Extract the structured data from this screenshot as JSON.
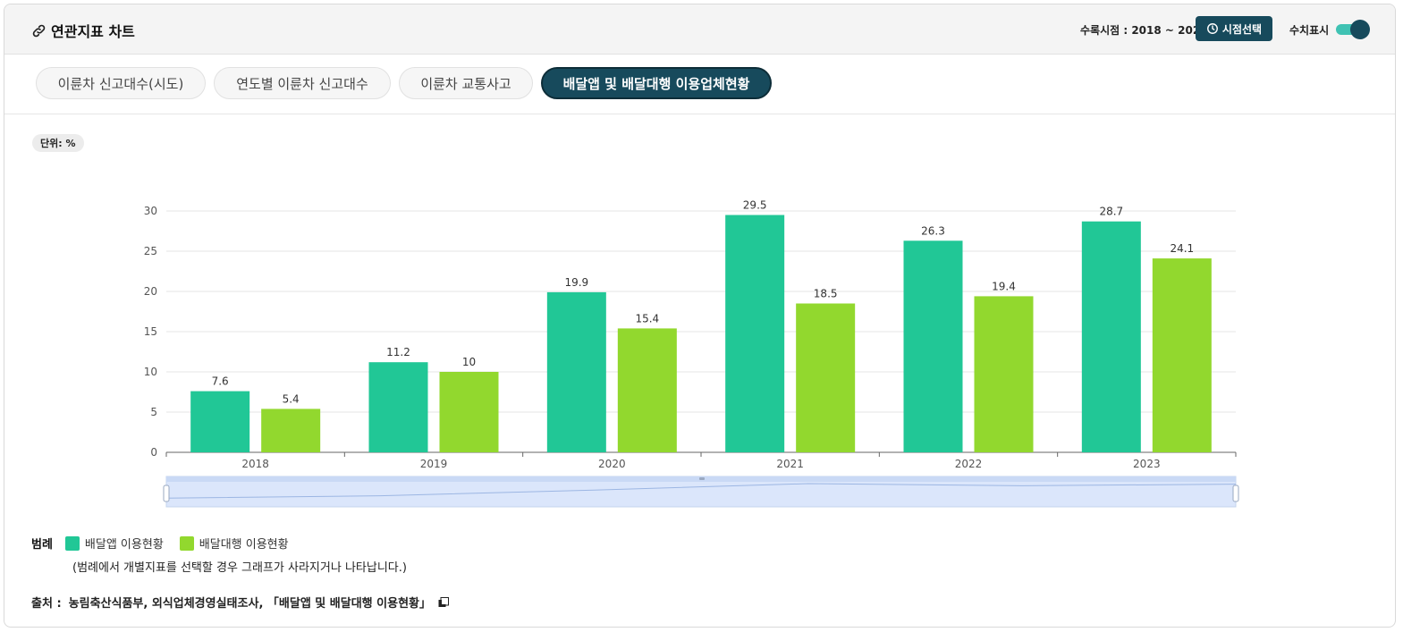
{
  "header": {
    "title": "연관지표 차트",
    "period_label": "수록시점 : 2018 ~ 2023",
    "period_button": "시점선택",
    "toggle_label": "수치표시"
  },
  "tabs": [
    {
      "label": "이륜차 신고대수(시도)",
      "active": false
    },
    {
      "label": "연도별 이륜차 신고대수",
      "active": false
    },
    {
      "label": "이륜차 교통사고",
      "active": false
    },
    {
      "label": "배달앱 및 배달대행 이용업체현황",
      "active": true
    }
  ],
  "unit": "단위: %",
  "chart_data": {
    "type": "bar",
    "title": "",
    "xlabel": "",
    "ylabel": "",
    "categories": [
      "2018",
      "2019",
      "2020",
      "2021",
      "2022",
      "2023"
    ],
    "series": [
      {
        "name": "배달앱 이용현황",
        "values": [
          7.6,
          11.2,
          19.9,
          29.5,
          26.3,
          28.7
        ],
        "color": "#21c796"
      },
      {
        "name": "배달대행 이용현황",
        "values": [
          5.4,
          10,
          15.4,
          18.5,
          19.4,
          24.1
        ],
        "color": "#92d82e"
      }
    ],
    "ylim": [
      0,
      30
    ],
    "yticks": [
      0,
      5,
      10,
      15,
      20,
      25,
      30
    ],
    "grid": true,
    "data_labels": true
  },
  "legend": {
    "title": "범례",
    "note": "(범례에서 개별지표를 선택할 경우 그래프가 사라지거나 나타납니다.)"
  },
  "source": {
    "label": "출처 :",
    "text": "농림축산식품부, 외식업체경영실태조사, 「배달앱 및 배달대행 이용현황」"
  },
  "colors": {
    "accent": "#174a5c",
    "toggle_track": "#3fc2b3",
    "series1": "#21c796",
    "series2": "#92d82e",
    "zoom_fill": "#dbe6fb"
  }
}
